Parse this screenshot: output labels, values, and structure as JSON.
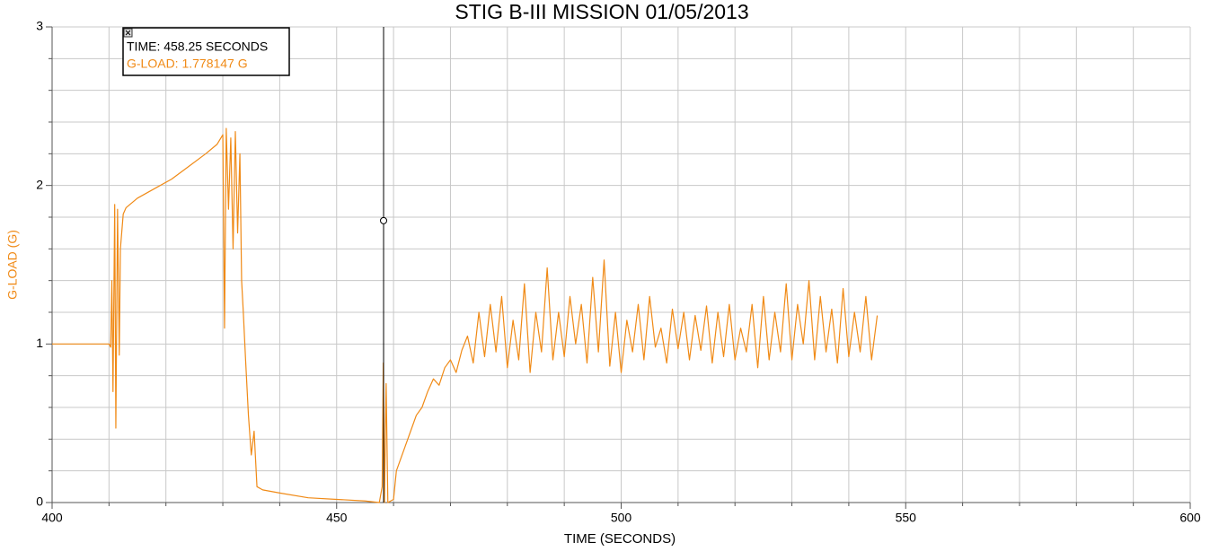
{
  "chart_data": {
    "type": "line",
    "title": "STIG B-III MISSION 01/05/2013",
    "x_label": "TIME (SECONDS)",
    "y_label": "G-LOAD (G)",
    "xlim": [
      400,
      600
    ],
    "xticks": [
      400,
      450,
      500,
      550,
      600
    ],
    "x_minor_ticks": [
      410,
      420,
      430,
      440,
      460,
      470,
      480,
      490,
      510,
      520,
      530,
      540,
      560,
      570,
      580,
      590
    ],
    "ylim": [
      0,
      3
    ],
    "yticks": [
      0,
      1,
      2,
      3
    ],
    "y_minor_ticks": [
      0.2,
      0.4,
      0.6,
      0.8,
      1.2,
      1.4,
      1.6,
      1.8,
      2.2,
      2.4,
      2.6,
      2.8
    ],
    "grid": true,
    "series": [
      {
        "name": "G-LOAD",
        "color": "#f08a16",
        "x": [
          400,
          405,
          410,
          410.3,
          410.5,
          410.7,
          411,
          411.2,
          411.5,
          411.8,
          412,
          412.5,
          413,
          415,
          418,
          421,
          424,
          427,
          429,
          430,
          430.3,
          430.6,
          431,
          431.4,
          431.8,
          432.2,
          432.6,
          433,
          433.3,
          433.6,
          434,
          434.5,
          435,
          435.5,
          436,
          437,
          440,
          445,
          450,
          455,
          457.5,
          458,
          458.2,
          458.4,
          458.7,
          459,
          460,
          460.5,
          461,
          462,
          463,
          464,
          465,
          466,
          467,
          468,
          469,
          470,
          471,
          472,
          473,
          474,
          475,
          476,
          477,
          478,
          479,
          480,
          481,
          482,
          483,
          484,
          485,
          486,
          487,
          488,
          489,
          490,
          491,
          492,
          493,
          494,
          495,
          496,
          497,
          498,
          499,
          500,
          501,
          502,
          503,
          504,
          505,
          506,
          507,
          508,
          509,
          510,
          511,
          512,
          513,
          514,
          515,
          516,
          517,
          518,
          519,
          520,
          521,
          522,
          523,
          524,
          525,
          526,
          527,
          528,
          529,
          530,
          531,
          532,
          533,
          534,
          535,
          536,
          537,
          538,
          539,
          540,
          541,
          542,
          543,
          544,
          545
        ],
        "values": [
          1.0,
          1.0,
          1.0,
          0.98,
          1.4,
          0.7,
          1.88,
          0.47,
          1.85,
          0.93,
          1.6,
          1.82,
          1.86,
          1.92,
          1.98,
          2.04,
          2.12,
          2.2,
          2.26,
          2.32,
          1.1,
          2.36,
          1.85,
          2.3,
          1.6,
          2.34,
          1.7,
          2.2,
          1.4,
          1.2,
          0.9,
          0.55,
          0.3,
          0.45,
          0.1,
          0.08,
          0.06,
          0.03,
          0.02,
          0.01,
          0.0,
          0.1,
          0.88,
          0.0,
          0.75,
          0.0,
          0.02,
          0.2,
          0.25,
          0.35,
          0.45,
          0.55,
          0.6,
          0.7,
          0.78,
          0.74,
          0.85,
          0.9,
          0.82,
          0.96,
          1.05,
          0.88,
          1.2,
          0.92,
          1.25,
          0.95,
          1.3,
          0.85,
          1.15,
          0.9,
          1.38,
          0.82,
          1.2,
          0.95,
          1.48,
          0.9,
          1.2,
          0.92,
          1.3,
          1.0,
          1.25,
          0.88,
          1.42,
          0.95,
          1.53,
          0.86,
          1.2,
          0.82,
          1.15,
          0.95,
          1.25,
          0.9,
          1.3,
          0.98,
          1.1,
          0.88,
          1.22,
          0.97,
          1.2,
          0.9,
          1.18,
          0.96,
          1.24,
          0.88,
          1.2,
          0.92,
          1.25,
          0.9,
          1.1,
          0.95,
          1.25,
          0.85,
          1.3,
          0.9,
          1.2,
          0.95,
          1.38,
          0.9,
          1.25,
          1.0,
          1.4,
          0.9,
          1.3,
          0.95,
          1.22,
          0.88,
          1.35,
          0.92,
          1.2,
          0.95,
          1.3,
          0.9,
          1.18
        ]
      }
    ],
    "cursor": {
      "x": 458.25,
      "y": 1.778147,
      "time_label": "TIME: 458.25 SECONDS",
      "value_label": "G-LOAD: 1.778147 G"
    }
  }
}
